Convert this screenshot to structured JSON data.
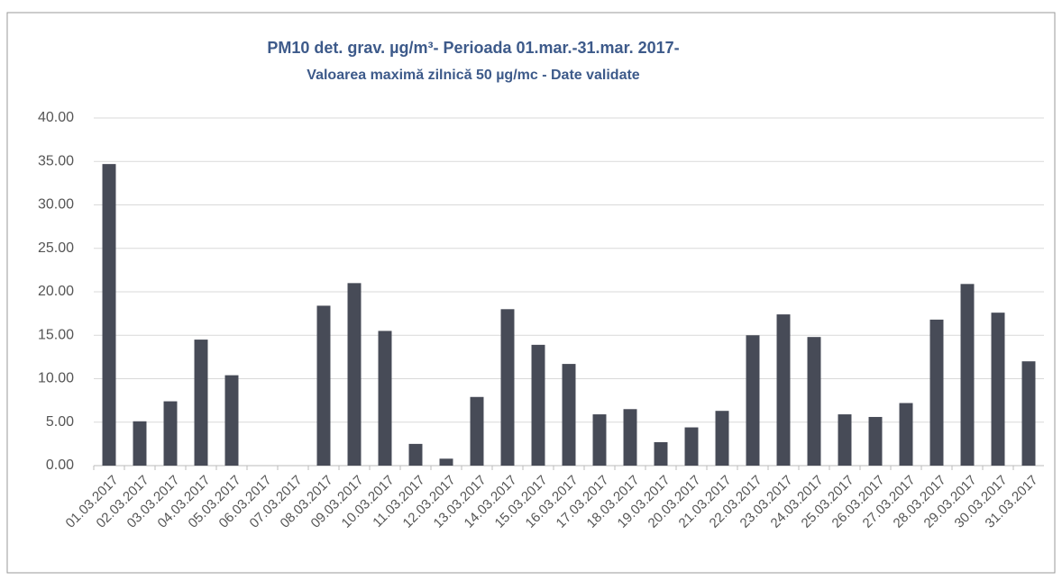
{
  "chart_data": {
    "type": "bar",
    "title": "PM10 det. grav. µg/m³- Perioada 01.mar.-31.mar. 2017-",
    "subtitle": "Valoarea maximă zilnică 50 µg/mc - Date validate",
    "categories": [
      "01.03.2017",
      "02.03.2017",
      "03.03.2017",
      "04.03.2017",
      "05.03.2017",
      "06.03.2017",
      "07.03.2017",
      "08.03.2017",
      "09.03.2017",
      "10.03.2017",
      "11.03.2017",
      "12.03.2017",
      "13.03.2017",
      "14.03.2017",
      "15.03.2017",
      "16.03.2017",
      "17.03.2017",
      "18.03.2017",
      "19.03.2017",
      "20.03.2017",
      "21.03.2017",
      "22.03.2017",
      "23.03.2017",
      "24.03.2017",
      "25.03.2017",
      "26.03.2017",
      "27.03.2017",
      "28.03.2017",
      "29.03.2017",
      "30.03.2017",
      "31.03.2017"
    ],
    "values": [
      34.7,
      5.1,
      7.4,
      14.5,
      10.4,
      null,
      null,
      18.4,
      21.0,
      15.5,
      2.5,
      0.8,
      7.9,
      18.0,
      13.9,
      11.7,
      5.9,
      6.5,
      2.7,
      4.4,
      6.3,
      15.0,
      17.4,
      14.8,
      5.9,
      5.6,
      7.2,
      16.8,
      20.9,
      17.6,
      12.0
    ],
    "color": "#474b57",
    "ylim": [
      0,
      40
    ],
    "yticks": [
      {
        "value": 0,
        "label": "0.00"
      },
      {
        "value": 5,
        "label": "5.00"
      },
      {
        "value": 10,
        "label": "10.00"
      },
      {
        "value": 15,
        "label": "15.00"
      },
      {
        "value": 20,
        "label": "20.00"
      },
      {
        "value": 25,
        "label": "25.00"
      },
      {
        "value": 30,
        "label": "30.00"
      },
      {
        "value": 35,
        "label": "35.00"
      },
      {
        "value": 40,
        "label": "40.00"
      }
    ],
    "grid": true
  }
}
